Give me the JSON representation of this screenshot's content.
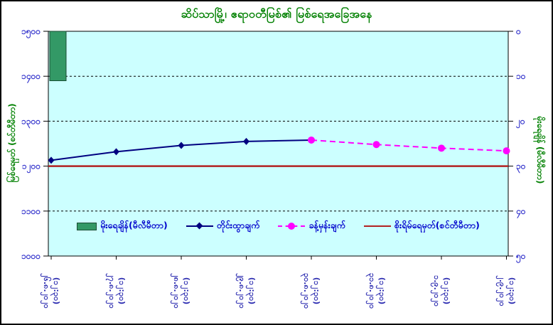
{
  "title": "ဆိပ်သာမြို့၊ ဧရာဝတီမြစ်၏ မြစ်ရေအခြေအနေ",
  "chart_data": {
    "type": "combo",
    "plot_bg": "#CCFFFF",
    "grid": true,
    "legend_position": "bottom-inside",
    "categories": [
      "၂၆.၈.၂၀၂၀",
      "၂၇.၈.၂၀၂၀",
      "၂၈.၈.၂၀၂၀",
      "၂၉.၈.၂၀၂၀",
      "၃၀.၈.၂၀၂၀",
      "၃၁.၈.၂၀၂၀",
      "၁.၉.၂၀၂၀",
      "၂.၉.၂၀၂၀"
    ],
    "x_axis": {
      "tick_labels_date": [
        "၂၆.၈.၂၀၂၀",
        "၂၇.၈.၂၀၂၀",
        "၂၈.၈.၂၀၂၀",
        "၂၉.၈.၂၀၂၀",
        "၃၀.၈.၂၀၂၀",
        "၃၁.၈.၂၀၂၀",
        "၁.၉.၂၀၂၀",
        "၂.၉.၂၀၂၀"
      ],
      "tick_labels_time": [
        "(၁၂:၃၀)",
        "(၁၂:၃၀)",
        "(၁၂:၃၀)",
        "(၁၂:၃၀)",
        "(၁၂:၃၀)",
        "(၁၂:၃၀)",
        "(၁၂:၃၀)",
        "(၁၂:၃၀)"
      ]
    },
    "left_axis": {
      "title": "မြစ်ရေမှတ် (စင်တီမီတာ)",
      "min": 1000,
      "max": 1500,
      "step": 100,
      "tick_labels": [
        "၁၅၀၀",
        "၁၄၀၀",
        "၁၃၀၀",
        "၁၂၀၀",
        "၁၁၀၀",
        "၁၀၀၀"
      ]
    },
    "right_axis": {
      "title": "မိုးရေချိန် (မီလီမီတာ)",
      "min": 0,
      "max": 50,
      "step": 10,
      "inverted": true,
      "tick_labels": [
        "၀",
        "၁၀",
        "၂၀",
        "၃၀",
        "၄၀",
        "၅၀"
      ]
    },
    "series": [
      {
        "name": "မိုးရေချိန်(မီလီမီတာ)",
        "type": "bar",
        "axis": "right",
        "color": "#339966",
        "values": [
          11,
          null,
          null,
          null,
          null,
          null,
          null,
          null
        ]
      },
      {
        "name": "တိုင်းထွာချက်",
        "type": "line",
        "axis": "left",
        "color": "#000080",
        "marker": "diamond",
        "dashed": false,
        "values": [
          1213,
          1232,
          1246,
          1255,
          1258,
          null,
          null,
          null
        ]
      },
      {
        "name": "ခန့်မှန်းချက်",
        "type": "line",
        "axis": "left",
        "color": "#FF00FF",
        "marker": "circle",
        "dashed": true,
        "values": [
          null,
          null,
          null,
          null,
          1258,
          1248,
          1240,
          1234
        ]
      },
      {
        "name": "စိုးရိမ်ရေမှတ်(စင်တီမီတာ)",
        "type": "hline",
        "axis": "left",
        "color": "#B22222",
        "value": 1200
      }
    ]
  }
}
